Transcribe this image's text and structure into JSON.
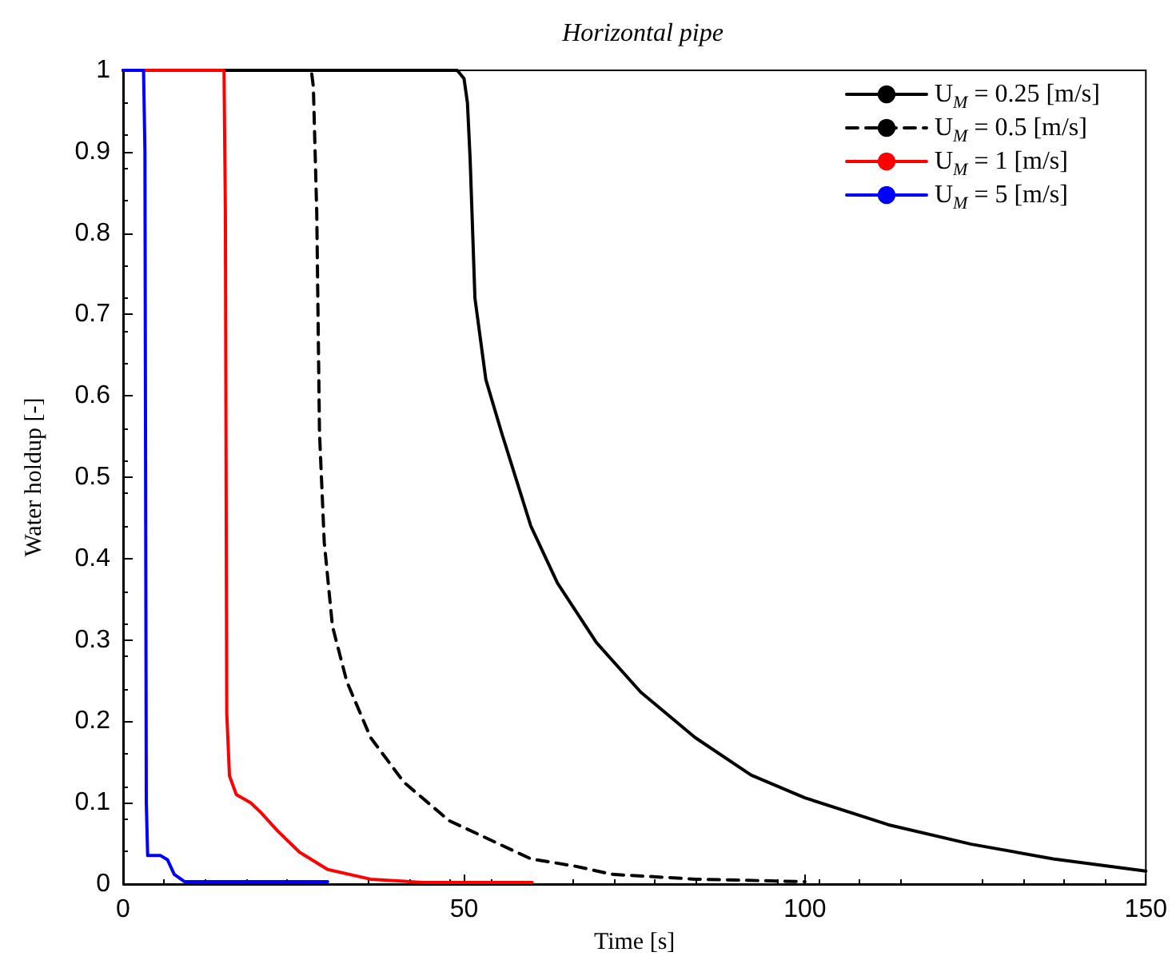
{
  "chart_data": {
    "type": "line",
    "title": "Horizontal pipe",
    "xlabel": "Time [s]",
    "ylabel": "Water holdup [-]",
    "xlim": [
      0,
      150
    ],
    "xticks": [
      0,
      50,
      100,
      150
    ],
    "ylim": [
      0,
      1
    ],
    "yticks": [
      0,
      0.1,
      0.2,
      0.3,
      0.4,
      0.5,
      0.6,
      0.7,
      0.8,
      0.9,
      1
    ],
    "grid": false,
    "legend": "top right",
    "marker": "none",
    "series": [
      {
        "name": "U$_{M}$ = 0.25 [m/s]",
        "color": "#000000",
        "line_style": "solid",
        "x": [
          0,
          49,
          50,
          50.5,
          50.9,
          51.6,
          53.2,
          55.5,
          59.8,
          63.7,
          69.4,
          75.9,
          83.9,
          92.1,
          100,
          112.2,
          124.4,
          136.4,
          150
        ],
        "values": [
          1,
          1,
          0.99,
          0.96,
          0.89,
          0.72,
          0.62,
          0.555,
          0.44,
          0.37,
          0.297,
          0.236,
          0.18,
          0.134,
          0.106,
          0.073,
          0.049,
          0.031,
          0.016
        ]
      },
      {
        "name": "U$_{M}$ = 0.5 [m/s]",
        "color": "#000000",
        "line_style": "dashed",
        "x": [
          0,
          27.6,
          27.9,
          28.4,
          28.8,
          29.5,
          30.7,
          32.8,
          36.3,
          41.2,
          47.8,
          59.8,
          66.3,
          71.7,
          84,
          100
        ],
        "values": [
          1,
          1,
          0.98,
          0.825,
          0.555,
          0.42,
          0.317,
          0.249,
          0.18,
          0.125,
          0.078,
          0.031,
          0.022,
          0.012,
          0.006,
          0.003
        ]
      },
      {
        "name": "U$_{M}$ = 1 [m/s]",
        "color": "#ff0000",
        "line_style": "solid",
        "x": [
          0,
          14.8,
          15,
          15.2,
          15.6,
          16.6,
          18.7,
          20.2,
          22.7,
          25.9,
          30,
          36.3,
          44,
          60
        ],
        "values": [
          1,
          1,
          0.825,
          0.21,
          0.133,
          0.11,
          0.1,
          0.088,
          0.065,
          0.039,
          0.018,
          0.006,
          0.002,
          0.002
        ]
      },
      {
        "name": "U$_{M}$ = 5 [m/s]",
        "color": "#0000ff",
        "line_style": "solid",
        "x": [
          0,
          3,
          3.2,
          3.4,
          3.6,
          5.5,
          6.5,
          7.5,
          9,
          30
        ],
        "values": [
          1,
          1,
          0.9,
          0.1,
          0.035,
          0.035,
          0.03,
          0.012,
          0.003,
          0.003
        ]
      }
    ]
  }
}
